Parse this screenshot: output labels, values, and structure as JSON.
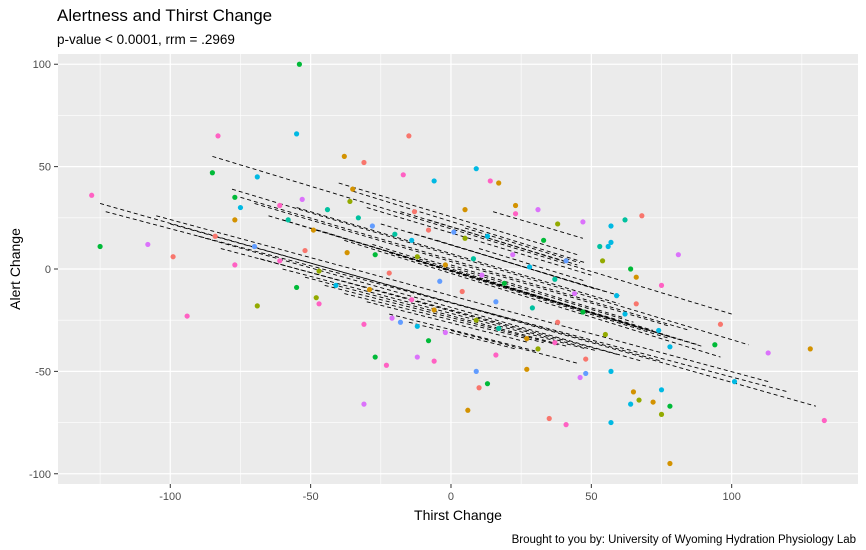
{
  "chart_data": {
    "type": "scatter",
    "title": "Alertness and Thirst Change",
    "subtitle": "p-value < 0.0001, rrm = .2969",
    "caption": "Brought to you by: University of Wyoming Hydration Physiology Lab",
    "xlabel": "Thirst Change",
    "ylabel": "Alert Change",
    "xlim": [
      -140,
      145
    ],
    "ylim": [
      -105,
      105
    ],
    "x_ticks": [
      -100,
      -50,
      0,
      50,
      100
    ],
    "y_ticks": [
      -100,
      -50,
      0,
      50,
      100
    ],
    "grid": true,
    "panel_background": "#ebebeb",
    "fit_line_style": "dashed-black",
    "colors": [
      "#F8766D",
      "#D39200",
      "#93AA00",
      "#00BA38",
      "#00C19F",
      "#00B9E3",
      "#619CFF",
      "#DB72FB",
      "#FF61C3"
    ],
    "points": [
      {
        "x": -54,
        "y": 100,
        "c": 3
      },
      {
        "x": -55,
        "y": 66,
        "c": 5
      },
      {
        "x": -83,
        "y": 65,
        "c": 8
      },
      {
        "x": -15,
        "y": 65,
        "c": 0
      },
      {
        "x": -38,
        "y": 55,
        "c": 1
      },
      {
        "x": -31,
        "y": 52,
        "c": 0
      },
      {
        "x": 9,
        "y": 49,
        "c": 5
      },
      {
        "x": -85,
        "y": 47,
        "c": 3
      },
      {
        "x": -17,
        "y": 46,
        "c": 8
      },
      {
        "x": -69,
        "y": 45,
        "c": 5
      },
      {
        "x": 14,
        "y": 43,
        "c": 8
      },
      {
        "x": 17,
        "y": 42,
        "c": 1
      },
      {
        "x": -6,
        "y": 43,
        "c": 5
      },
      {
        "x": -35,
        "y": 39,
        "c": 1
      },
      {
        "x": -128,
        "y": 36,
        "c": 8
      },
      {
        "x": -77,
        "y": 35,
        "c": 3
      },
      {
        "x": -53,
        "y": 34,
        "c": 7
      },
      {
        "x": -36,
        "y": 33,
        "c": 2
      },
      {
        "x": -61,
        "y": 31,
        "c": 8
      },
      {
        "x": 23,
        "y": 31,
        "c": 1
      },
      {
        "x": -75,
        "y": 30,
        "c": 5
      },
      {
        "x": -44,
        "y": 29,
        "c": 4
      },
      {
        "x": 5,
        "y": 29,
        "c": 1
      },
      {
        "x": 31,
        "y": 29,
        "c": 7
      },
      {
        "x": -13,
        "y": 28,
        "c": 0
      },
      {
        "x": 23,
        "y": 27,
        "c": 8
      },
      {
        "x": 68,
        "y": 26,
        "c": 0
      },
      {
        "x": -33,
        "y": 25,
        "c": 4
      },
      {
        "x": -77,
        "y": 24,
        "c": 1
      },
      {
        "x": -58,
        "y": 24,
        "c": 4
      },
      {
        "x": 62,
        "y": 24,
        "c": 4
      },
      {
        "x": 47,
        "y": 23,
        "c": 7
      },
      {
        "x": 38,
        "y": 22,
        "c": 2
      },
      {
        "x": 57,
        "y": 21,
        "c": 5
      },
      {
        "x": -28,
        "y": 21,
        "c": 6
      },
      {
        "x": -8,
        "y": 19,
        "c": 0
      },
      {
        "x": -49,
        "y": 19,
        "c": 1
      },
      {
        "x": 1,
        "y": 18,
        "c": 6
      },
      {
        "x": -20,
        "y": 17,
        "c": 4
      },
      {
        "x": 13,
        "y": 16,
        "c": 5
      },
      {
        "x": -84,
        "y": 16,
        "c": 0
      },
      {
        "x": 5,
        "y": 15,
        "c": 2
      },
      {
        "x": -14,
        "y": 14,
        "c": 5
      },
      {
        "x": 33,
        "y": 14,
        "c": 3
      },
      {
        "x": 57,
        "y": 13,
        "c": 5
      },
      {
        "x": -108,
        "y": 12,
        "c": 7
      },
      {
        "x": -125,
        "y": 11,
        "c": 3
      },
      {
        "x": -70,
        "y": 11,
        "c": 6
      },
      {
        "x": 53,
        "y": 11,
        "c": 4
      },
      {
        "x": 56,
        "y": 11,
        "c": 5
      },
      {
        "x": -52,
        "y": 9,
        "c": 0
      },
      {
        "x": -37,
        "y": 8,
        "c": 1
      },
      {
        "x": -27,
        "y": 7,
        "c": 3
      },
      {
        "x": 22,
        "y": 7,
        "c": 7
      },
      {
        "x": 81,
        "y": 7,
        "c": 7
      },
      {
        "x": -99,
        "y": 6,
        "c": 0
      },
      {
        "x": -12,
        "y": 6,
        "c": 2
      },
      {
        "x": 8,
        "y": 5,
        "c": 4
      },
      {
        "x": 41,
        "y": 4,
        "c": 6
      },
      {
        "x": 54,
        "y": 4,
        "c": 2
      },
      {
        "x": -61,
        "y": 4,
        "c": 8
      },
      {
        "x": -77,
        "y": 2,
        "c": 8
      },
      {
        "x": -2,
        "y": 2,
        "c": 1
      },
      {
        "x": 28,
        "y": 1,
        "c": 5
      },
      {
        "x": 64,
        "y": 0,
        "c": 3
      },
      {
        "x": -47,
        "y": -1,
        "c": 2
      },
      {
        "x": -22,
        "y": -2,
        "c": 0
      },
      {
        "x": 11,
        "y": -3,
        "c": 7
      },
      {
        "x": 66,
        "y": -4,
        "c": 1
      },
      {
        "x": 37,
        "y": -5,
        "c": 4
      },
      {
        "x": -4,
        "y": -6,
        "c": 6
      },
      {
        "x": 19,
        "y": -7,
        "c": 3
      },
      {
        "x": -41,
        "y": -8,
        "c": 5
      },
      {
        "x": 75,
        "y": -8,
        "c": 8
      },
      {
        "x": -55,
        "y": -9,
        "c": 3
      },
      {
        "x": -29,
        "y": -10,
        "c": 1
      },
      {
        "x": 4,
        "y": -11,
        "c": 0
      },
      {
        "x": 44,
        "y": -12,
        "c": 7
      },
      {
        "x": 59,
        "y": -13,
        "c": 5
      },
      {
        "x": -48,
        "y": -14,
        "c": 2
      },
      {
        "x": -14,
        "y": -15,
        "c": 8
      },
      {
        "x": 16,
        "y": -16,
        "c": 6
      },
      {
        "x": 66,
        "y": -17,
        "c": 0
      },
      {
        "x": -47,
        "y": -17,
        "c": 8
      },
      {
        "x": -69,
        "y": -18,
        "c": 2
      },
      {
        "x": 29,
        "y": -19,
        "c": 4
      },
      {
        "x": -6,
        "y": -20,
        "c": 1
      },
      {
        "x": 47,
        "y": -21,
        "c": 3
      },
      {
        "x": 62,
        "y": -22,
        "c": 5
      },
      {
        "x": -94,
        "y": -23,
        "c": 8
      },
      {
        "x": -21,
        "y": -24,
        "c": 7
      },
      {
        "x": 9,
        "y": -25,
        "c": 2
      },
      {
        "x": -18,
        "y": -26,
        "c": 6
      },
      {
        "x": 38,
        "y": -26,
        "c": 0
      },
      {
        "x": 96,
        "y": -27,
        "c": 0
      },
      {
        "x": -31,
        "y": -27,
        "c": 8
      },
      {
        "x": -12,
        "y": -28,
        "c": 5
      },
      {
        "x": 17,
        "y": -29,
        "c": 4
      },
      {
        "x": 74,
        "y": -30,
        "c": 5
      },
      {
        "x": -2,
        "y": -31,
        "c": 7
      },
      {
        "x": 55,
        "y": -32,
        "c": 2
      },
      {
        "x": 27,
        "y": -34,
        "c": 1
      },
      {
        "x": -8,
        "y": -35,
        "c": 3
      },
      {
        "x": 37,
        "y": -36,
        "c": 8
      },
      {
        "x": 94,
        "y": -37,
        "c": 3
      },
      {
        "x": 78,
        "y": -38,
        "c": 5
      },
      {
        "x": 31,
        "y": -39,
        "c": 2
      },
      {
        "x": 113,
        "y": -41,
        "c": 7
      },
      {
        "x": 128,
        "y": -39,
        "c": 1
      },
      {
        "x": 16,
        "y": -42,
        "c": 8
      },
      {
        "x": -12,
        "y": -43,
        "c": 7
      },
      {
        "x": -27,
        "y": -43,
        "c": 3
      },
      {
        "x": 48,
        "y": -44,
        "c": 0
      },
      {
        "x": -6,
        "y": -45,
        "c": 8
      },
      {
        "x": -23,
        "y": -47,
        "c": 8
      },
      {
        "x": 27,
        "y": -49,
        "c": 1
      },
      {
        "x": 9,
        "y": -50,
        "c": 6
      },
      {
        "x": 57,
        "y": -50,
        "c": 5
      },
      {
        "x": 48,
        "y": -51,
        "c": 6
      },
      {
        "x": 46,
        "y": -53,
        "c": 7
      },
      {
        "x": 101,
        "y": -55,
        "c": 5
      },
      {
        "x": 13,
        "y": -56,
        "c": 3
      },
      {
        "x": 10,
        "y": -58,
        "c": 0
      },
      {
        "x": 75,
        "y": -59,
        "c": 5
      },
      {
        "x": 65,
        "y": -60,
        "c": 1
      },
      {
        "x": 67,
        "y": -64,
        "c": 2
      },
      {
        "x": 72,
        "y": -65,
        "c": 1
      },
      {
        "x": 64,
        "y": -66,
        "c": 5
      },
      {
        "x": -31,
        "y": -66,
        "c": 7
      },
      {
        "x": 78,
        "y": -67,
        "c": 3
      },
      {
        "x": 6,
        "y": -69,
        "c": 1
      },
      {
        "x": 75,
        "y": -71,
        "c": 2
      },
      {
        "x": 35,
        "y": -73,
        "c": 0
      },
      {
        "x": 133,
        "y": -74,
        "c": 8
      },
      {
        "x": 57,
        "y": -75,
        "c": 5
      },
      {
        "x": 41,
        "y": -76,
        "c": 8
      },
      {
        "x": 78,
        "y": -95,
        "c": 1
      }
    ],
    "fit_lines": [
      {
        "x1": -85,
        "y1": 55,
        "x2": 100,
        "y2": -22
      },
      {
        "x1": -78,
        "y1": 39,
        "x2": 106,
        "y2": -37
      },
      {
        "x1": -75,
        "y1": 35,
        "x2": 85,
        "y2": -30
      },
      {
        "x1": -70,
        "y1": 32,
        "x2": 78,
        "y2": -28
      },
      {
        "x1": -65,
        "y1": 26,
        "x2": 90,
        "y2": -38
      },
      {
        "x1": -60,
        "y1": 24,
        "x2": 72,
        "y2": -30
      },
      {
        "x1": -55,
        "y1": 30,
        "x2": 60,
        "y2": -17
      },
      {
        "x1": -50,
        "y1": 20,
        "x2": 88,
        "y2": -37
      },
      {
        "x1": -45,
        "y1": 18,
        "x2": 70,
        "y2": -30
      },
      {
        "x1": -40,
        "y1": 42,
        "x2": 45,
        "y2": 7
      },
      {
        "x1": -38,
        "y1": 14,
        "x2": 96,
        "y2": -43
      },
      {
        "x1": -35,
        "y1": 38,
        "x2": 48,
        "y2": 3
      },
      {
        "x1": -30,
        "y1": 30,
        "x2": 50,
        "y2": -3
      },
      {
        "x1": -28,
        "y1": 12,
        "x2": 80,
        "y2": -34
      },
      {
        "x1": -25,
        "y1": 22,
        "x2": 55,
        "y2": -11
      },
      {
        "x1": -22,
        "y1": 8,
        "x2": 78,
        "y2": -34
      },
      {
        "x1": -18,
        "y1": 28,
        "x2": 45,
        "y2": 2
      },
      {
        "x1": -15,
        "y1": 18,
        "x2": 60,
        "y2": -13
      },
      {
        "x1": -12,
        "y1": 6,
        "x2": 65,
        "y2": -26
      },
      {
        "x1": -8,
        "y1": 24,
        "x2": 42,
        "y2": 3
      },
      {
        "x1": -5,
        "y1": 14,
        "x2": 52,
        "y2": -10
      },
      {
        "x1": 0,
        "y1": 2,
        "x2": 62,
        "y2": -24
      },
      {
        "x1": 5,
        "y1": 20,
        "x2": 46,
        "y2": 3
      },
      {
        "x1": 10,
        "y1": 10,
        "x2": 48,
        "y2": -6
      },
      {
        "x1": 15,
        "y1": 28,
        "x2": 47,
        "y2": 15
      },
      {
        "x1": -125,
        "y1": 32,
        "x2": 130,
        "y2": -67
      },
      {
        "x1": -123,
        "y1": 28,
        "x2": 120,
        "y2": -60
      },
      {
        "x1": -105,
        "y1": 26,
        "x2": 113,
        "y2": -55
      },
      {
        "x1": -100,
        "y1": 22,
        "x2": 75,
        "y2": -45
      },
      {
        "x1": -90,
        "y1": 16,
        "x2": 68,
        "y2": -45
      },
      {
        "x1": -82,
        "y1": 10,
        "x2": 60,
        "y2": -42
      },
      {
        "x1": -68,
        "y1": 5,
        "x2": 52,
        "y2": -40
      },
      {
        "x1": -60,
        "y1": 0,
        "x2": 48,
        "y2": -39
      },
      {
        "x1": -52,
        "y1": -4,
        "x2": 42,
        "y2": -38
      },
      {
        "x1": -45,
        "y1": -8,
        "x2": 38,
        "y2": -37
      },
      {
        "x1": -38,
        "y1": -12,
        "x2": 33,
        "y2": -36
      },
      {
        "x1": -30,
        "y1": -16,
        "x2": 28,
        "y2": -36
      },
      {
        "x1": -22,
        "y1": -22,
        "x2": 30,
        "y2": -40
      },
      {
        "x1": -15,
        "y1": -26,
        "x2": 23,
        "y2": -39
      },
      {
        "x1": 0,
        "y1": -30,
        "x2": 45,
        "y2": -46
      }
    ]
  }
}
